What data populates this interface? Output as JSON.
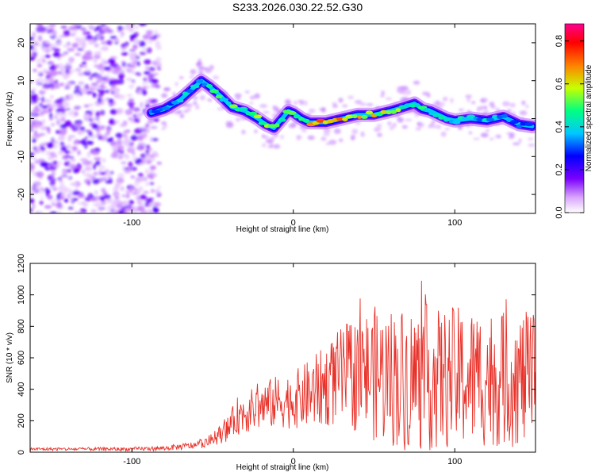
{
  "title": "S233.2026.030.22.52.G30",
  "colors": {
    "snr_line": "#e8322a",
    "axis": "#000000"
  },
  "chart_data": [
    {
      "type": "heatmap",
      "xlabel": "Height of straight line (km)",
      "ylabel": "Frequency (Hz)",
      "xlim": [
        -163,
        150
      ],
      "ylim": [
        -25,
        25
      ],
      "xticks": [
        -100,
        0,
        100
      ],
      "yticks": [
        -20,
        -10,
        0,
        10,
        20
      ],
      "colorbar": {
        "label": "Normalized spectral amplitude",
        "range": [
          0,
          0.88
        ],
        "ticks": [
          0.0,
          0.2,
          0.4,
          0.6,
          0.8
        ]
      },
      "ridge": {
        "x": [
          -88,
          -80,
          -70,
          -62,
          -57,
          -52,
          -45,
          -38,
          -30,
          -22,
          -17,
          -12,
          -7,
          -3,
          0,
          5,
          10,
          20,
          30,
          40,
          50,
          60,
          68,
          75,
          80,
          85,
          90,
          95,
          100,
          110,
          120,
          130,
          140,
          148
        ],
        "y": [
          1.5,
          2.5,
          5,
          8,
          10,
          8.5,
          6,
          3,
          2,
          0,
          -1.5,
          -2.5,
          0,
          2,
          1.5,
          0,
          -1,
          -1,
          0,
          1,
          1,
          2,
          3,
          4,
          2.5,
          2,
          1,
          0,
          -0.5,
          0,
          -0.5,
          0.5,
          -1.5,
          -2
        ]
      },
      "ridge_amplitude": {
        "x": [
          -88,
          -70,
          -52,
          -40,
          -25,
          -10,
          0,
          10,
          20,
          30,
          45,
          60,
          80,
          100,
          120,
          148
        ],
        "value": [
          0.35,
          0.45,
          0.5,
          0.55,
          0.6,
          0.62,
          0.65,
          0.7,
          0.85,
          0.8,
          0.75,
          0.6,
          0.55,
          0.5,
          0.45,
          0.4
        ]
      }
    },
    {
      "type": "line",
      "xlabel": "Height of straight line (km)",
      "ylabel": "SNR (10 * v/v)",
      "xlim": [
        -163,
        150
      ],
      "ylim": [
        0,
        1200
      ],
      "xticks": [
        -100,
        0,
        100
      ],
      "yticks": [
        0,
        200,
        400,
        600,
        800,
        1000,
        1200
      ],
      "envelope": {
        "x": [
          -163,
          -140,
          -100,
          -80,
          -60,
          -50,
          -40,
          -35,
          -30,
          -20,
          -10,
          0,
          10,
          20,
          30,
          40,
          50,
          60,
          70,
          80,
          90,
          100,
          110,
          120,
          130,
          140,
          150
        ],
        "mean": [
          20,
          20,
          20,
          25,
          45,
          80,
          150,
          230,
          250,
          290,
          320,
          330,
          370,
          420,
          480,
          500,
          500,
          480,
          470,
          480,
          460,
          470,
          470,
          480,
          460,
          470,
          450
        ],
        "spread": [
          10,
          10,
          12,
          15,
          25,
          40,
          80,
          120,
          130,
          150,
          170,
          180,
          220,
          260,
          320,
          380,
          430,
          450,
          460,
          480,
          450,
          460,
          450,
          450,
          430,
          440,
          420
        ]
      }
    }
  ]
}
